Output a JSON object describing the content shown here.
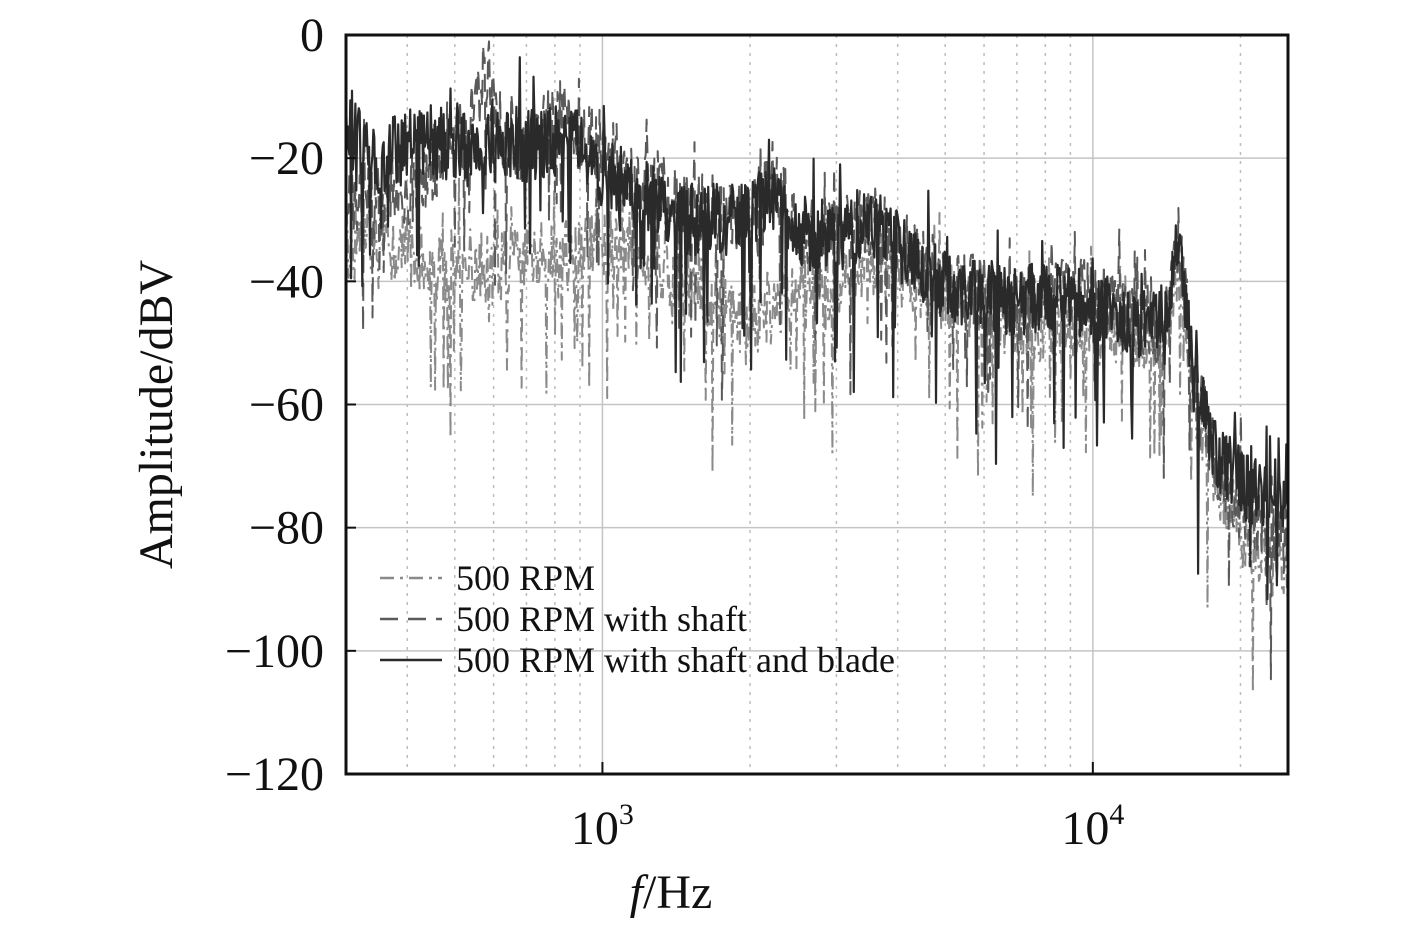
{
  "chart_data": {
    "type": "line",
    "title": "",
    "xlabel_italic": "f",
    "xlabel_rest": "/Hz",
    "ylabel": "Amplitude/dBV",
    "xscale": "log",
    "xlim": [
      300,
      25000
    ],
    "ylim": [
      -120,
      0
    ],
    "grid": true,
    "legend_position": "lower-left",
    "y_ticks": [
      0,
      -20,
      -40,
      -60,
      -80,
      -100,
      -120
    ],
    "y_tick_labels": [
      "0",
      "−20",
      "−40",
      "−60",
      "−80",
      "−100",
      "−120"
    ],
    "x_major_ticks": [
      1000,
      10000
    ],
    "x_tick_labels": [
      {
        "base": "10",
        "exp": "3"
      },
      {
        "base": "10",
        "exp": "4"
      }
    ],
    "series": [
      {
        "name": "500 RPM",
        "style": "dashdot",
        "color": "#8a8a8a",
        "points": [
          [
            300,
            -34
          ],
          [
            350,
            -33
          ],
          [
            400,
            -35
          ],
          [
            450,
            -38
          ],
          [
            500,
            -37
          ],
          [
            600,
            -38
          ],
          [
            700,
            -36
          ],
          [
            800,
            -37
          ],
          [
            900,
            -35
          ],
          [
            1000,
            -33
          ],
          [
            1200,
            -35
          ],
          [
            1500,
            -40
          ],
          [
            1800,
            -46
          ],
          [
            2000,
            -47
          ],
          [
            2500,
            -42
          ],
          [
            3000,
            -40
          ],
          [
            3500,
            -37
          ],
          [
            4000,
            -38
          ],
          [
            5000,
            -42
          ],
          [
            6000,
            -45
          ],
          [
            7000,
            -47
          ],
          [
            8000,
            -47
          ],
          [
            10000,
            -46
          ],
          [
            12000,
            -48
          ],
          [
            14000,
            -50
          ],
          [
            15000,
            -38
          ],
          [
            16000,
            -58
          ],
          [
            18000,
            -73
          ],
          [
            20000,
            -80
          ],
          [
            23000,
            -85
          ],
          [
            25000,
            -87
          ]
        ]
      },
      {
        "name": "500 RPM with shaft",
        "style": "dash",
        "color": "#5a5a5a",
        "points": [
          [
            300,
            -28
          ],
          [
            350,
            -27
          ],
          [
            400,
            -25
          ],
          [
            450,
            -22
          ],
          [
            500,
            -18
          ],
          [
            550,
            -12
          ],
          [
            580,
            -5
          ],
          [
            620,
            -15
          ],
          [
            700,
            -20
          ],
          [
            800,
            -12
          ],
          [
            900,
            -16
          ],
          [
            1000,
            -18
          ],
          [
            1200,
            -24
          ],
          [
            1500,
            -28
          ],
          [
            2000,
            -30
          ],
          [
            2200,
            -22
          ],
          [
            2500,
            -32
          ],
          [
            3000,
            -33
          ],
          [
            3500,
            -30
          ],
          [
            4000,
            -34
          ],
          [
            5000,
            -40
          ],
          [
            6000,
            -42
          ],
          [
            7000,
            -44
          ],
          [
            8000,
            -42
          ],
          [
            10000,
            -42
          ],
          [
            12000,
            -45
          ],
          [
            14000,
            -48
          ],
          [
            15000,
            -33
          ],
          [
            16000,
            -55
          ],
          [
            18000,
            -70
          ],
          [
            20000,
            -76
          ],
          [
            23000,
            -80
          ],
          [
            25000,
            -82
          ]
        ]
      },
      {
        "name": "500 RPM with shaft and blade",
        "style": "solid",
        "color": "#2a2a2a",
        "points": [
          [
            300,
            -12
          ],
          [
            320,
            -18
          ],
          [
            350,
            -20
          ],
          [
            400,
            -18
          ],
          [
            450,
            -17
          ],
          [
            500,
            -19
          ],
          [
            600,
            -18
          ],
          [
            700,
            -18
          ],
          [
            800,
            -17
          ],
          [
            900,
            -18
          ],
          [
            1000,
            -22
          ],
          [
            1200,
            -26
          ],
          [
            1500,
            -30
          ],
          [
            2000,
            -30
          ],
          [
            2200,
            -25
          ],
          [
            2500,
            -32
          ],
          [
            3000,
            -33
          ],
          [
            3500,
            -30
          ],
          [
            4000,
            -34
          ],
          [
            5000,
            -41
          ],
          [
            6000,
            -42
          ],
          [
            7000,
            -44
          ],
          [
            8000,
            -42
          ],
          [
            10000,
            -44
          ],
          [
            12000,
            -46
          ],
          [
            14000,
            -48
          ],
          [
            15000,
            -32
          ],
          [
            16000,
            -56
          ],
          [
            18000,
            -68
          ],
          [
            20000,
            -73
          ],
          [
            23000,
            -74
          ],
          [
            25000,
            -76
          ]
        ]
      }
    ]
  }
}
